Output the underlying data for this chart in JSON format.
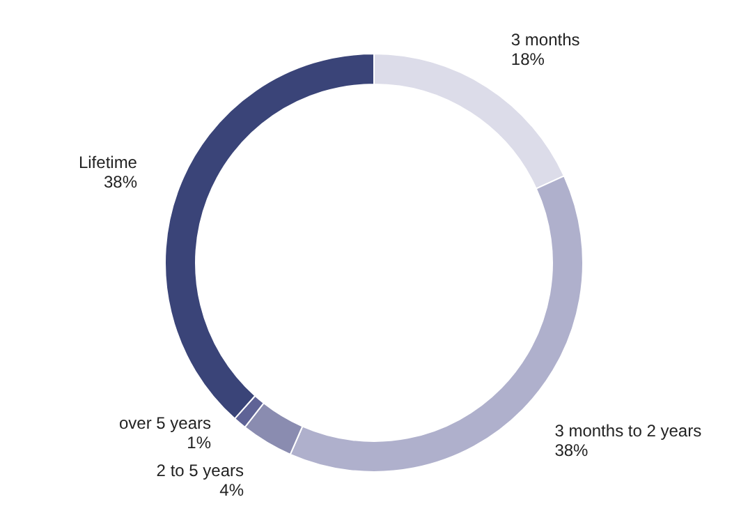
{
  "chart_data": {
    "type": "donut",
    "categories": [
      "3 months",
      "3 months to 2 years",
      "2 to 5 years",
      "over 5 years",
      "Lifetime"
    ],
    "values": [
      18,
      38,
      4,
      1,
      38
    ],
    "colors": [
      "#dcdce9",
      "#afb0cc",
      "#8a8cb0",
      "#5f6396",
      "#3a4478"
    ],
    "value_labels": [
      "18%",
      "38%",
      "4%",
      "1%",
      "38%"
    ]
  }
}
